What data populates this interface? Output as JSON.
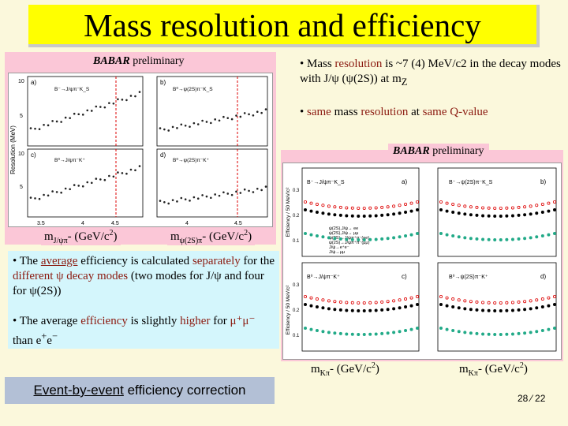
{
  "slide": {
    "title": "Mass resolution and efficiency",
    "page_number": "28 ⁄ 22"
  },
  "left_figure": {
    "prelim_babar": "BABAR",
    "prelim_word": "preliminary",
    "xlabel_left": {
      "main": "m",
      "sub": "J/ψπ",
      "rest": "- (GeV/c",
      "sup": "2",
      "end": ")"
    },
    "xlabel_right": {
      "main": "m",
      "sub": "ψ(2S)π",
      "rest": "- (GeV/c",
      "sup": "2",
      "end": ")"
    },
    "ylabel": "Resolution (MeV)",
    "panels": [
      {
        "tag": "a)",
        "label": "B⁻→J/ψπ⁻K_S"
      },
      {
        "tag": "b)",
        "label": "B⁰→ψ(2S)π⁻K_S"
      },
      {
        "tag": "c)",
        "label": "B⁰→J/ψπ⁻K⁺"
      },
      {
        "tag": "d)",
        "label": "B⁰→ψ(2S)π⁻K⁺"
      }
    ],
    "ticks_y": [
      "10",
      "5"
    ],
    "ticks_x_left": [
      "3.5",
      "4",
      "4.5"
    ],
    "ticks_x_right": [
      "4",
      "4.5"
    ]
  },
  "right_figure": {
    "prelim_babar": "BABAR",
    "prelim_word": "preliminary",
    "xlabel": {
      "main": "m",
      "sub": "Kπ",
      "rest": "- (GeV/c",
      "sup": "2",
      "end": ")"
    },
    "ylabel": "Efficiency / 50 MeV/c²",
    "panels": [
      {
        "tag": "a)",
        "label": "B⁻→J/ψπ⁻K_S"
      },
      {
        "tag": "b)",
        "label": "B⁻→ψ(2S)π⁻K_S"
      },
      {
        "tag": "c)",
        "label": "B⁰→J/ψπ⁻K⁺"
      },
      {
        "tag": "d)",
        "label": "B⁰→ψ(2S)π⁻K⁺"
      }
    ],
    "legend": [
      "ψ(2S),J/ψ→ ee",
      "ψ(2S),J/ψ→ μμ",
      "ψ(2S)→J/ψπ⁺π⁻(ee)",
      "ψ(2S)→J/ψπ⁺π⁻(μμ)",
      "J/ψ→e⁺e⁻",
      "J/ψ→μμ"
    ],
    "ticks_y": [
      "0.3",
      "0.2",
      "0.1"
    ]
  },
  "bullets": {
    "b1": {
      "pre": "• Mass ",
      "hl1": "resolution",
      "mid": " is ~7 (4) MeV/c2 in the decay modes with J/ψ (ψ(2S)) at m",
      "sub": "Z"
    },
    "b2": {
      "pre": "• ",
      "hl1": "same",
      "mid1": " mass ",
      "hl2": "resolution",
      "mid2": " at ",
      "hl3": "same Q-value"
    },
    "b3": {
      "pre": "• The ",
      "u1": "average",
      "mid1": " efficiency is calculated ",
      "hl1": "separately",
      "mid2": " for the ",
      "hl2": "different ψ decay modes",
      "end": " (two modes for J/ψ and four for ψ(2S))"
    },
    "b4": {
      "pre": "• The average ",
      "hl1": "efficiency",
      "mid1": " is slightly ",
      "hl2": "higher",
      "mid2": " for ",
      "hl3": "μ⁺μ⁻",
      "mid3": " than e",
      "sup1": "+",
      "mid4": "e",
      "sup2": "−"
    }
  },
  "footer": {
    "u": "Event-by-event",
    "rest": " efficiency correction"
  }
}
